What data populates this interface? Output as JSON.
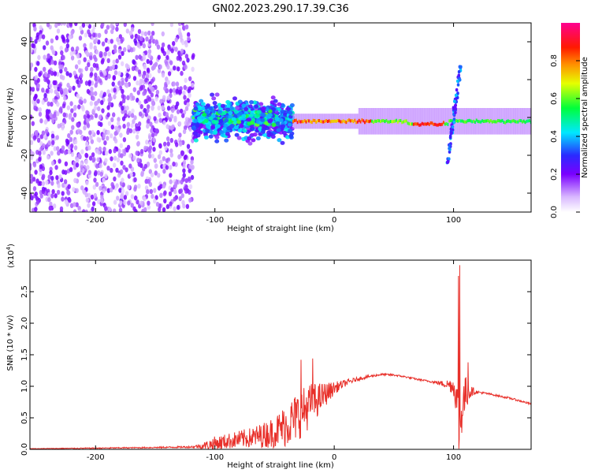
{
  "title": "GN02.2023.290.17.39.C36",
  "chart_data": [
    {
      "type": "heatmap",
      "title": "GN02.2023.290.17.39.C36",
      "xlabel": "Height of straight line (km)",
      "ylabel": "Frequency (Hz)",
      "xlim": [
        -255,
        165
      ],
      "ylim": [
        -50,
        50
      ],
      "xticks": [
        -200,
        -100,
        0,
        100
      ],
      "yticks": [
        -40,
        -20,
        0,
        20,
        40
      ],
      "colorbar": {
        "label": "Normalized spectral amplitude",
        "range": [
          0.0,
          1.0
        ],
        "ticks": [
          "0.0",
          "0.2",
          "0.4",
          "0.6",
          "0.8"
        ],
        "colormap": "white-purple-blue-cyan-green-yellow-red-magenta"
      },
      "features": [
        {
          "name": "noise",
          "x_range": [
            -255,
            -118
          ],
          "freq_range": [
            -50,
            50
          ],
          "amplitude": 0.05
        },
        {
          "name": "turbulent band",
          "x_range": [
            -118,
            -35
          ],
          "freq_range": [
            -12,
            12
          ],
          "amplitude": 0.25
        },
        {
          "name": "narrow tone",
          "x_range": [
            -35,
            165
          ],
          "freq_center": -2,
          "amplitude": 0.9
        },
        {
          "name": "spike",
          "x": 100,
          "freq_range": [
            -25,
            28
          ],
          "amplitude": 0.5
        }
      ]
    },
    {
      "type": "line",
      "xlabel": "Height of straight line (km)",
      "ylabel": "SNR (10 * v/v)",
      "multiplier_label": "(x10",
      "multiplier_exp": "4",
      "multiplier_close": ")",
      "xlim": [
        -255,
        165
      ],
      "ylim": [
        0,
        3.0
      ],
      "xticks": [
        -200,
        -100,
        0,
        100
      ],
      "yticks": [
        "0.0",
        "0.5",
        "1.0",
        "1.5",
        "2.0",
        "2.5"
      ],
      "color": "#e8302a",
      "series": [
        {
          "x": [
            -255,
            -200,
            -150,
            -120,
            -110,
            -100,
            -90,
            -80,
            -70,
            -60,
            -50,
            -40,
            -30,
            -20,
            -10,
            0,
            10,
            20,
            30,
            40,
            50,
            60,
            70,
            80,
            90,
            95,
            100,
            103,
            105,
            107,
            110,
            113,
            115,
            120,
            130,
            140,
            150,
            165
          ],
          "values": [
            0.01,
            0.02,
            0.03,
            0.04,
            0.06,
            0.1,
            0.14,
            0.17,
            0.2,
            0.24,
            0.3,
            0.42,
            0.58,
            0.74,
            0.86,
            0.98,
            1.06,
            1.12,
            1.16,
            1.19,
            1.18,
            1.15,
            1.11,
            1.08,
            1.05,
            1.04,
            1.02,
            0.8,
            0.3,
            0.7,
            0.9,
            0.95,
            0.93,
            0.91,
            0.88,
            0.84,
            0.8,
            0.72
          ],
          "noise": [
            0.005,
            0.008,
            0.01,
            0.015,
            0.05,
            0.12,
            0.12,
            0.14,
            0.16,
            0.2,
            0.25,
            0.35,
            0.4,
            0.35,
            0.22,
            0.1,
            0.05,
            0.03,
            0.02,
            0.015,
            0.015,
            0.015,
            0.015,
            0.015,
            0.04,
            0.08,
            0.15,
            0.3,
            0.6,
            0.4,
            0.3,
            0.2,
            0.08,
            0.02,
            0.015,
            0.015,
            0.015,
            0.015
          ],
          "peaks": [
            [
              -28,
              1.42
            ],
            [
              -18,
              1.44
            ],
            [
              105,
              2.92
            ],
            [
              104,
              2.75
            ],
            [
              112,
              1.38
            ]
          ]
        }
      ]
    }
  ]
}
